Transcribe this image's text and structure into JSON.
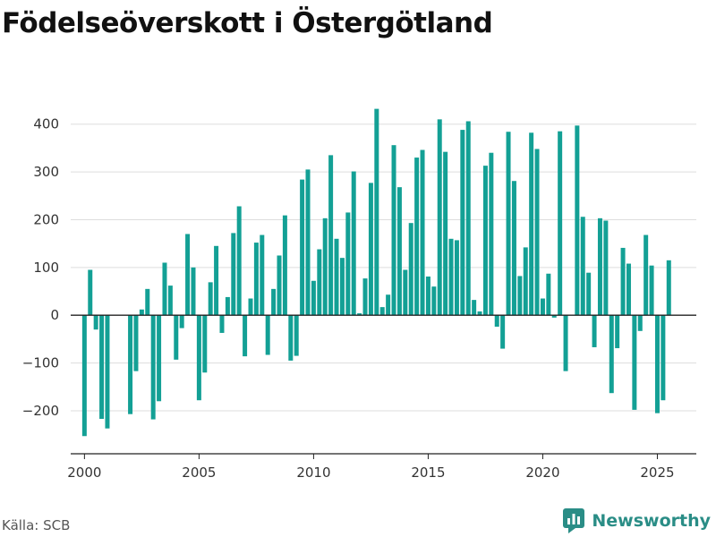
{
  "title": "Födelseöverskott i Östergötland",
  "source": "Källa: SCB",
  "brand": {
    "name": "Newsworthy",
    "icon": "newsworthy-logo-icon"
  },
  "colors": {
    "bar": "#13a095",
    "grid": "#dddddd",
    "axis": "#222222",
    "brand": "#2a8d86"
  },
  "chart_data": {
    "type": "bar",
    "title": "Födelseöverskott i Östergötland",
    "xlabel": "",
    "ylabel": "",
    "x_start": 2000,
    "x_step": 0.25,
    "xticks": [
      2000,
      2005,
      2010,
      2015,
      2020,
      2025
    ],
    "yticks": [
      -200,
      -100,
      0,
      100,
      200,
      300,
      400
    ],
    "xlim": [
      1999.4,
      2026.7
    ],
    "ylim": [
      -290,
      450
    ],
    "grid": true,
    "values": [
      -253,
      95,
      -30,
      -217,
      -237,
      0,
      0,
      0,
      -207,
      -117,
      12,
      55,
      -218,
      -180,
      110,
      62,
      -93,
      -27,
      170,
      100,
      -178,
      -120,
      69,
      145,
      -37,
      38,
      172,
      228,
      -86,
      35,
      152,
      168,
      -83,
      55,
      125,
      209,
      -95,
      -85,
      284,
      305,
      72,
      138,
      203,
      335,
      160,
      120,
      215,
      301,
      4,
      77,
      277,
      432,
      17,
      43,
      356,
      268,
      95,
      193,
      330,
      346,
      81,
      60,
      410,
      342,
      160,
      157,
      388,
      406,
      32,
      8,
      313,
      340,
      -24,
      -70,
      384,
      281,
      82,
      142,
      382,
      348,
      35,
      87,
      -5,
      385,
      -117,
      0,
      397,
      206,
      89,
      -67,
      203,
      198,
      -163,
      -69,
      141,
      108,
      -198,
      -33,
      168,
      104,
      -205,
      -178,
      115
    ]
  }
}
